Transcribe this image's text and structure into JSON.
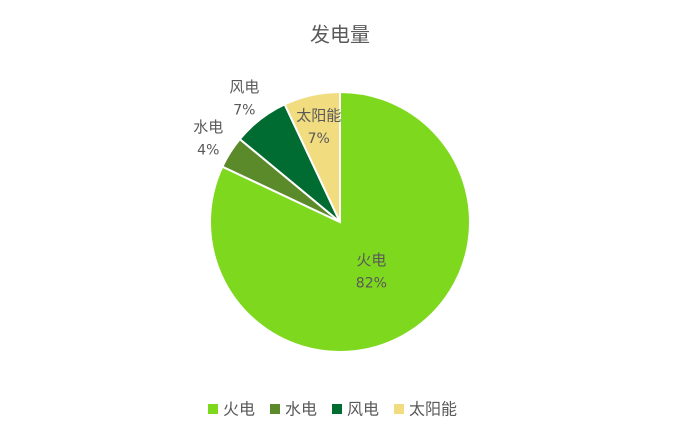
{
  "chart_data": {
    "type": "pie",
    "title": "发电量",
    "categories": [
      "火电",
      "水电",
      "风电",
      "太阳能"
    ],
    "values": [
      82,
      4,
      7,
      7
    ],
    "value_labels": [
      "82%",
      "4%",
      "7%",
      "7%"
    ],
    "colors": [
      "#7ed81e",
      "#5b8a2b",
      "#006c31",
      "#f1dc80"
    ],
    "legend": "bottom"
  }
}
